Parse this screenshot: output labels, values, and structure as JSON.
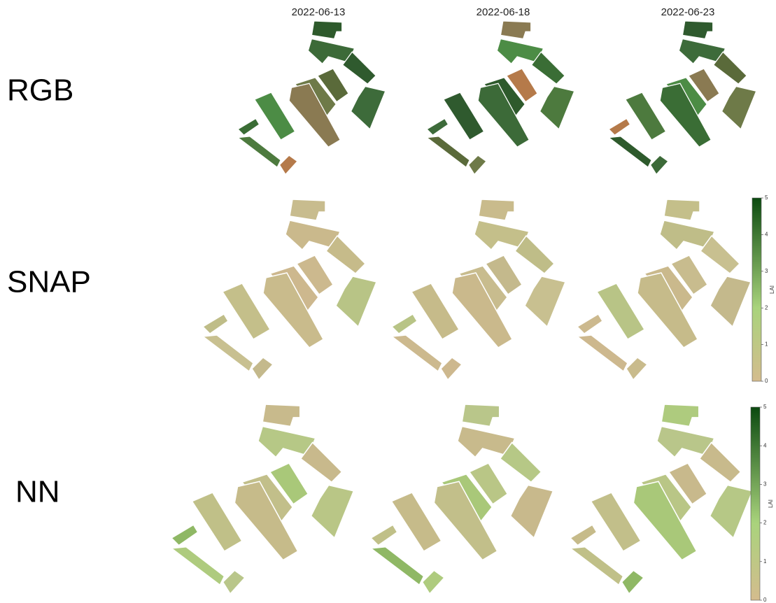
{
  "columns": [
    "2022-06-13",
    "2022-06-18",
    "2022-06-23"
  ],
  "rows": [
    "RGB",
    "SNAP",
    "NN"
  ],
  "colorbars": [
    {
      "label": "LAI",
      "range": [
        0,
        5
      ],
      "ticks": [
        0,
        1,
        2,
        3,
        4,
        5
      ]
    },
    {
      "label": "LAI",
      "range": [
        0,
        5
      ],
      "ticks": [
        0,
        1,
        2,
        3,
        4,
        5
      ]
    }
  ]
}
